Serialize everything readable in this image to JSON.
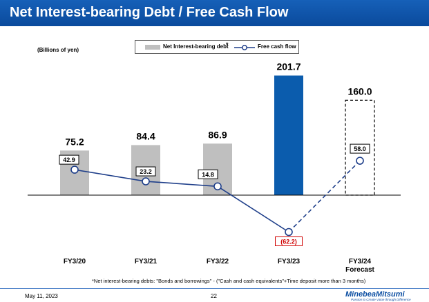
{
  "header": {
    "title": "Net Interest-bearing Debt / Free Cash Flow"
  },
  "unit_label": "(Billions of yen)",
  "legend": {
    "debt_label": "Net Interest-bearing debt",
    "debt_marker": "*",
    "fcf_label": "Free cash flow"
  },
  "footnote": "*Net interest-bearing debts: \"Bonds and borrowings\" - (\"Cash and cash equivalents\"+Time deposit more than 3 months)",
  "footer": {
    "date": "May 11, 2023",
    "page": "22",
    "logo": "MinebeaMitsumi",
    "tagline": "Passion to Create Value through Difference"
  },
  "colors": {
    "title_bar": "#0a4a9c",
    "bar_gray": "#bfbfbf",
    "bar_blue": "#0b5cad",
    "line": "#1f3f8a",
    "negative_label": "#d00000"
  },
  "chart_data": {
    "type": "bar",
    "categories": [
      "FY3/20",
      "FY3/21",
      "FY3/22",
      "FY3/23",
      "FY3/24"
    ],
    "category_sublabels": [
      "",
      "",
      "",
      "",
      "Forecast"
    ],
    "series": [
      {
        "name": "Net Interest-bearing debt",
        "type": "bar",
        "values": [
          75.2,
          84.4,
          86.9,
          201.7,
          160.0
        ],
        "labels": [
          "75.2",
          "84.4",
          "86.9",
          "201.7",
          "160.0"
        ],
        "styles": [
          "gray",
          "gray",
          "gray",
          "blue",
          "dashed"
        ]
      },
      {
        "name": "Free cash flow",
        "type": "line",
        "values": [
          42.9,
          23.2,
          14.8,
          -62.2,
          58.0
        ],
        "labels": [
          "42.9",
          "23.2",
          "14.8",
          "(62.2)",
          "58.0"
        ],
        "dashed_last_segment": true
      }
    ],
    "grid": false
  }
}
